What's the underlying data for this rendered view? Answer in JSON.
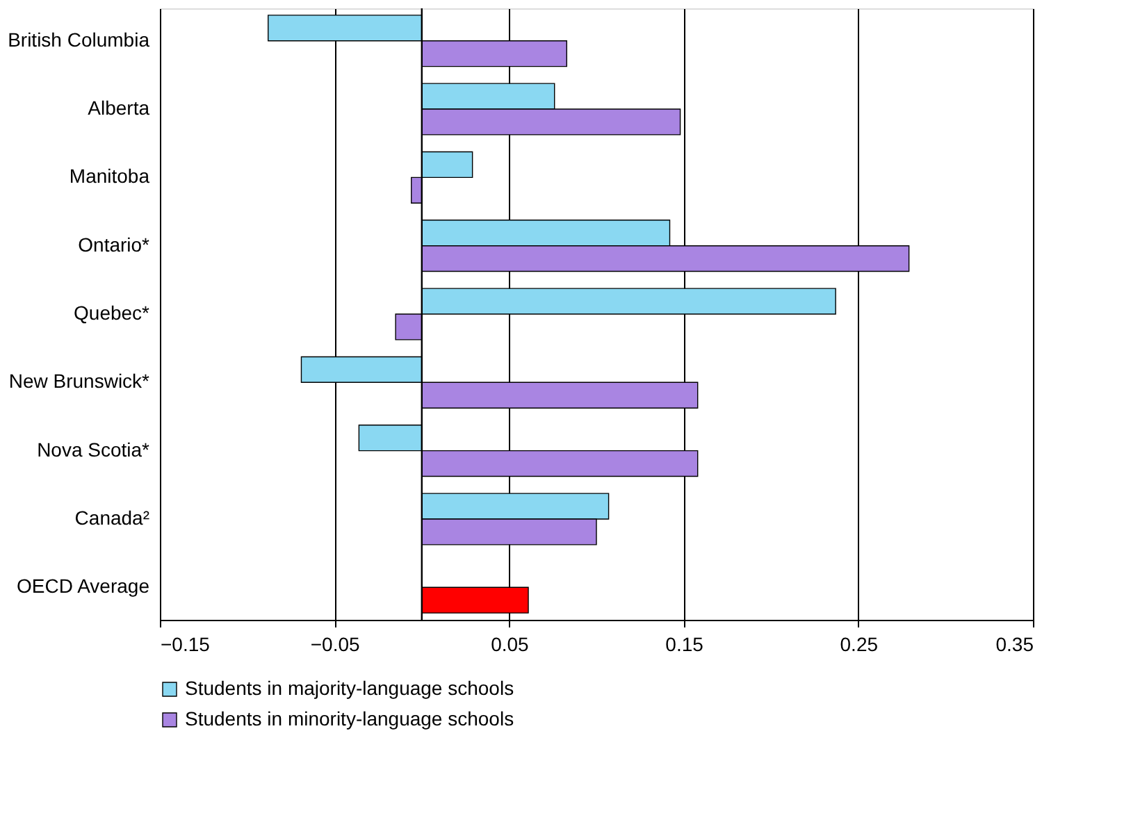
{
  "chart_data": {
    "type": "bar",
    "orientation": "horizontal",
    "categories": [
      "British Columbia",
      "Alberta",
      "Manitoba",
      "Ontario*",
      "Quebec*",
      "New Brunswick*",
      "Nova Scotia*",
      "Canada²",
      "OECD Average"
    ],
    "series": [
      {
        "name": "Students in majority-language schools",
        "color": "#8ad8f2",
        "values": [
          -0.088,
          0.076,
          0.029,
          0.142,
          0.237,
          -0.069,
          -0.036,
          0.107,
          null
        ]
      },
      {
        "name": "Students in minority-language schools",
        "color": "#a985e2",
        "values": [
          0.083,
          0.148,
          -0.006,
          0.279,
          -0.015,
          0.158,
          0.158,
          0.1,
          0.061
        ],
        "colors": [
          "#a985e2",
          "#a985e2",
          "#a985e2",
          "#a985e2",
          "#a985e2",
          "#a985e2",
          "#a985e2",
          "#a985e2",
          "#ff0000"
        ]
      }
    ],
    "xlim": [
      -0.15,
      0.35
    ],
    "xticks": [
      -0.15,
      -0.05,
      0.05,
      0.15,
      0.25,
      0.35
    ],
    "ref_lines": [
      {
        "axis": "x",
        "value": 0,
        "color": "#000000"
      }
    ],
    "grid": "x",
    "legend": "bottom"
  }
}
